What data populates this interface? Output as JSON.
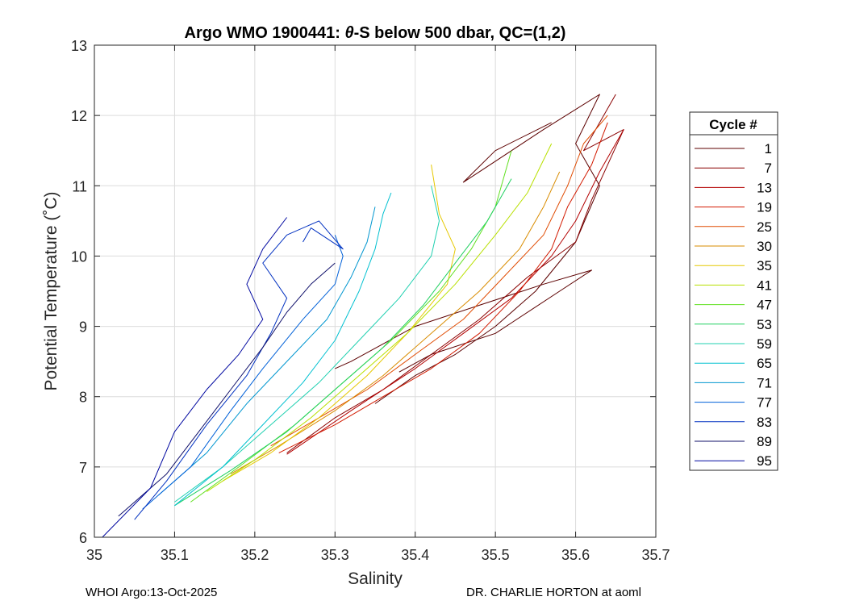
{
  "chart_data": {
    "type": "line",
    "title_prefix": "Argo WMO 1900441: ",
    "title_theta": "θ",
    "title_suffix": "-S below 500 dbar,  QC=(1,2)",
    "xlabel": "Salinity",
    "ylabel": "Potential Temperature (˚C)",
    "xlim": [
      35,
      35.7
    ],
    "ylim": [
      6,
      13
    ],
    "xticks": [
      "35",
      "35.1",
      "35.2",
      "35.3",
      "35.4",
      "35.5",
      "35.6",
      "35.7"
    ],
    "yticks": [
      "6",
      "7",
      "8",
      "9",
      "10",
      "11",
      "12",
      "13"
    ],
    "grid": true,
    "legend_title": "Cycle #",
    "legend_position": "right-outside",
    "series": [
      {
        "name": "1",
        "color": "#5c0000",
        "points": [
          [
            35.38,
            8.35
          ],
          [
            35.42,
            8.6
          ],
          [
            35.5,
            8.9
          ],
          [
            35.58,
            9.5
          ],
          [
            35.62,
            9.8
          ],
          [
            35.56,
            9.6
          ],
          [
            35.48,
            9.3
          ],
          [
            35.4,
            9.0
          ],
          [
            35.32,
            8.5
          ],
          [
            35.3,
            8.4
          ]
        ]
      },
      {
        "name": "1",
        "color": "#5c0000",
        "points": [
          [
            35.35,
            7.9
          ],
          [
            35.4,
            8.3
          ],
          [
            35.45,
            8.6
          ],
          [
            35.5,
            9.0
          ],
          [
            35.55,
            9.5
          ],
          [
            35.6,
            10.2
          ],
          [
            35.63,
            11.0
          ],
          [
            35.6,
            11.6
          ],
          [
            35.63,
            12.3
          ],
          [
            35.56,
            11.8
          ],
          [
            35.48,
            11.2
          ],
          [
            35.46,
            11.05
          ],
          [
            35.5,
            11.5
          ],
          [
            35.57,
            11.9
          ]
        ]
      },
      {
        "name": "7",
        "color": "#8a0000",
        "points": [
          [
            35.24,
            7.2
          ],
          [
            35.3,
            7.7
          ],
          [
            35.36,
            8.1
          ],
          [
            35.42,
            8.6
          ],
          [
            35.48,
            9.1
          ],
          [
            35.54,
            9.7
          ],
          [
            35.6,
            10.2
          ],
          [
            35.62,
            10.8
          ],
          [
            35.66,
            11.8
          ],
          [
            35.61,
            11.5
          ],
          [
            35.65,
            12.3
          ]
        ]
      },
      {
        "name": "13",
        "color": "#b30000",
        "points": [
          [
            35.24,
            7.18
          ],
          [
            35.32,
            7.8
          ],
          [
            35.4,
            8.4
          ],
          [
            35.46,
            8.9
          ],
          [
            35.52,
            9.4
          ],
          [
            35.57,
            10.0
          ],
          [
            35.6,
            10.5
          ],
          [
            35.63,
            11.2
          ],
          [
            35.66,
            11.8
          ]
        ]
      },
      {
        "name": "19",
        "color": "#d21a00",
        "points": [
          [
            35.23,
            7.2
          ],
          [
            35.3,
            7.6
          ],
          [
            35.36,
            8.0
          ],
          [
            35.42,
            8.4
          ],
          [
            35.48,
            8.9
          ],
          [
            35.53,
            9.5
          ],
          [
            35.57,
            10.1
          ],
          [
            35.59,
            10.7
          ],
          [
            35.62,
            11.3
          ],
          [
            35.64,
            11.9
          ]
        ]
      },
      {
        "name": "25",
        "color": "#e04a00",
        "points": [
          [
            35.22,
            7.3
          ],
          [
            35.28,
            7.7
          ],
          [
            35.34,
            8.1
          ],
          [
            35.4,
            8.6
          ],
          [
            35.46,
            9.1
          ],
          [
            35.51,
            9.7
          ],
          [
            35.56,
            10.3
          ],
          [
            35.59,
            11.0
          ],
          [
            35.61,
            11.6
          ],
          [
            35.64,
            12.0
          ]
        ]
      },
      {
        "name": "30",
        "color": "#d98c00",
        "points": [
          [
            35.17,
            6.9
          ],
          [
            35.23,
            7.3
          ],
          [
            35.3,
            7.8
          ],
          [
            35.36,
            8.3
          ],
          [
            35.42,
            8.9
          ],
          [
            35.48,
            9.5
          ],
          [
            35.53,
            10.1
          ],
          [
            35.56,
            10.7
          ],
          [
            35.58,
            11.2
          ]
        ]
      },
      {
        "name": "35",
        "color": "#e6c800",
        "points": [
          [
            35.16,
            6.8
          ],
          [
            35.22,
            7.2
          ],
          [
            35.28,
            7.7
          ],
          [
            35.34,
            8.3
          ],
          [
            35.39,
            8.9
          ],
          [
            35.44,
            9.6
          ],
          [
            35.45,
            10.1
          ],
          [
            35.43,
            10.6
          ],
          [
            35.42,
            11.3
          ]
        ]
      },
      {
        "name": "41",
        "color": "#b8e000",
        "points": [
          [
            35.14,
            6.65
          ],
          [
            35.2,
            7.1
          ],
          [
            35.27,
            7.7
          ],
          [
            35.33,
            8.3
          ],
          [
            35.39,
            8.9
          ],
          [
            35.45,
            9.6
          ],
          [
            35.5,
            10.3
          ],
          [
            35.54,
            10.9
          ],
          [
            35.57,
            11.6
          ]
        ]
      },
      {
        "name": "47",
        "color": "#60e020",
        "points": [
          [
            35.12,
            6.5
          ],
          [
            35.18,
            7.0
          ],
          [
            35.25,
            7.6
          ],
          [
            35.31,
            8.2
          ],
          [
            35.37,
            8.8
          ],
          [
            35.43,
            9.5
          ],
          [
            35.47,
            10.1
          ],
          [
            35.5,
            10.7
          ],
          [
            35.52,
            11.5
          ]
        ]
      },
      {
        "name": "53",
        "color": "#20d060",
        "points": [
          [
            35.1,
            6.45
          ],
          [
            35.17,
            6.95
          ],
          [
            35.24,
            7.5
          ],
          [
            35.3,
            8.1
          ],
          [
            35.36,
            8.7
          ],
          [
            35.41,
            9.3
          ],
          [
            35.45,
            9.9
          ],
          [
            35.49,
            10.5
          ],
          [
            35.52,
            11.1
          ]
        ]
      },
      {
        "name": "59",
        "color": "#20d0b0",
        "points": [
          [
            35.1,
            6.5
          ],
          [
            35.16,
            7.0
          ],
          [
            35.22,
            7.6
          ],
          [
            35.28,
            8.2
          ],
          [
            35.33,
            8.8
          ],
          [
            35.38,
            9.4
          ],
          [
            35.42,
            10.0
          ],
          [
            35.43,
            10.5
          ],
          [
            35.42,
            11.0
          ]
        ]
      },
      {
        "name": "65",
        "color": "#00c0d0",
        "points": [
          [
            35.1,
            6.45
          ],
          [
            35.16,
            7.0
          ],
          [
            35.21,
            7.6
          ],
          [
            35.26,
            8.2
          ],
          [
            35.3,
            8.8
          ],
          [
            35.33,
            9.5
          ],
          [
            35.35,
            10.1
          ],
          [
            35.36,
            10.6
          ],
          [
            35.37,
            10.9
          ]
        ]
      },
      {
        "name": "71",
        "color": "#0096d0",
        "points": [
          [
            35.08,
            6.6
          ],
          [
            35.14,
            7.2
          ],
          [
            35.19,
            7.9
          ],
          [
            35.24,
            8.5
          ],
          [
            35.29,
            9.1
          ],
          [
            35.32,
            9.7
          ],
          [
            35.34,
            10.2
          ],
          [
            35.35,
            10.7
          ]
        ]
      },
      {
        "name": "77",
        "color": "#0060d8",
        "points": [
          [
            35.06,
            6.4
          ],
          [
            35.12,
            7.0
          ],
          [
            35.17,
            7.8
          ],
          [
            35.21,
            8.4
          ],
          [
            35.26,
            9.1
          ],
          [
            35.3,
            9.6
          ],
          [
            35.31,
            10.0
          ],
          [
            35.3,
            10.3
          ]
        ]
      },
      {
        "name": "83",
        "color": "#0030c0",
        "points": [
          [
            35.05,
            6.25
          ],
          [
            35.09,
            6.8
          ],
          [
            35.14,
            7.6
          ],
          [
            35.19,
            8.3
          ],
          [
            35.22,
            8.9
          ],
          [
            35.24,
            9.4
          ],
          [
            35.21,
            9.9
          ],
          [
            35.24,
            10.3
          ],
          [
            35.28,
            10.5
          ],
          [
            35.31,
            10.1
          ],
          [
            35.27,
            10.4
          ],
          [
            35.26,
            10.2
          ]
        ]
      },
      {
        "name": "89",
        "color": "#10106a",
        "points": [
          [
            35.03,
            6.3
          ],
          [
            35.09,
            6.9
          ],
          [
            35.13,
            7.5
          ],
          [
            35.17,
            8.1
          ],
          [
            35.21,
            8.7
          ],
          [
            35.24,
            9.2
          ],
          [
            35.27,
            9.6
          ],
          [
            35.3,
            9.9
          ]
        ]
      },
      {
        "name": "95",
        "color": "#0008a0",
        "points": [
          [
            35.01,
            6.0
          ],
          [
            35.07,
            6.7
          ],
          [
            35.1,
            7.5
          ],
          [
            35.14,
            8.1
          ],
          [
            35.18,
            8.6
          ],
          [
            35.21,
            9.1
          ],
          [
            35.19,
            9.6
          ],
          [
            35.21,
            10.1
          ],
          [
            35.24,
            10.55
          ]
        ]
      }
    ]
  },
  "footer": {
    "left": "WHOI Argo:13-Oct-2025",
    "right": "DR. CHARLIE HORTON at aoml"
  }
}
